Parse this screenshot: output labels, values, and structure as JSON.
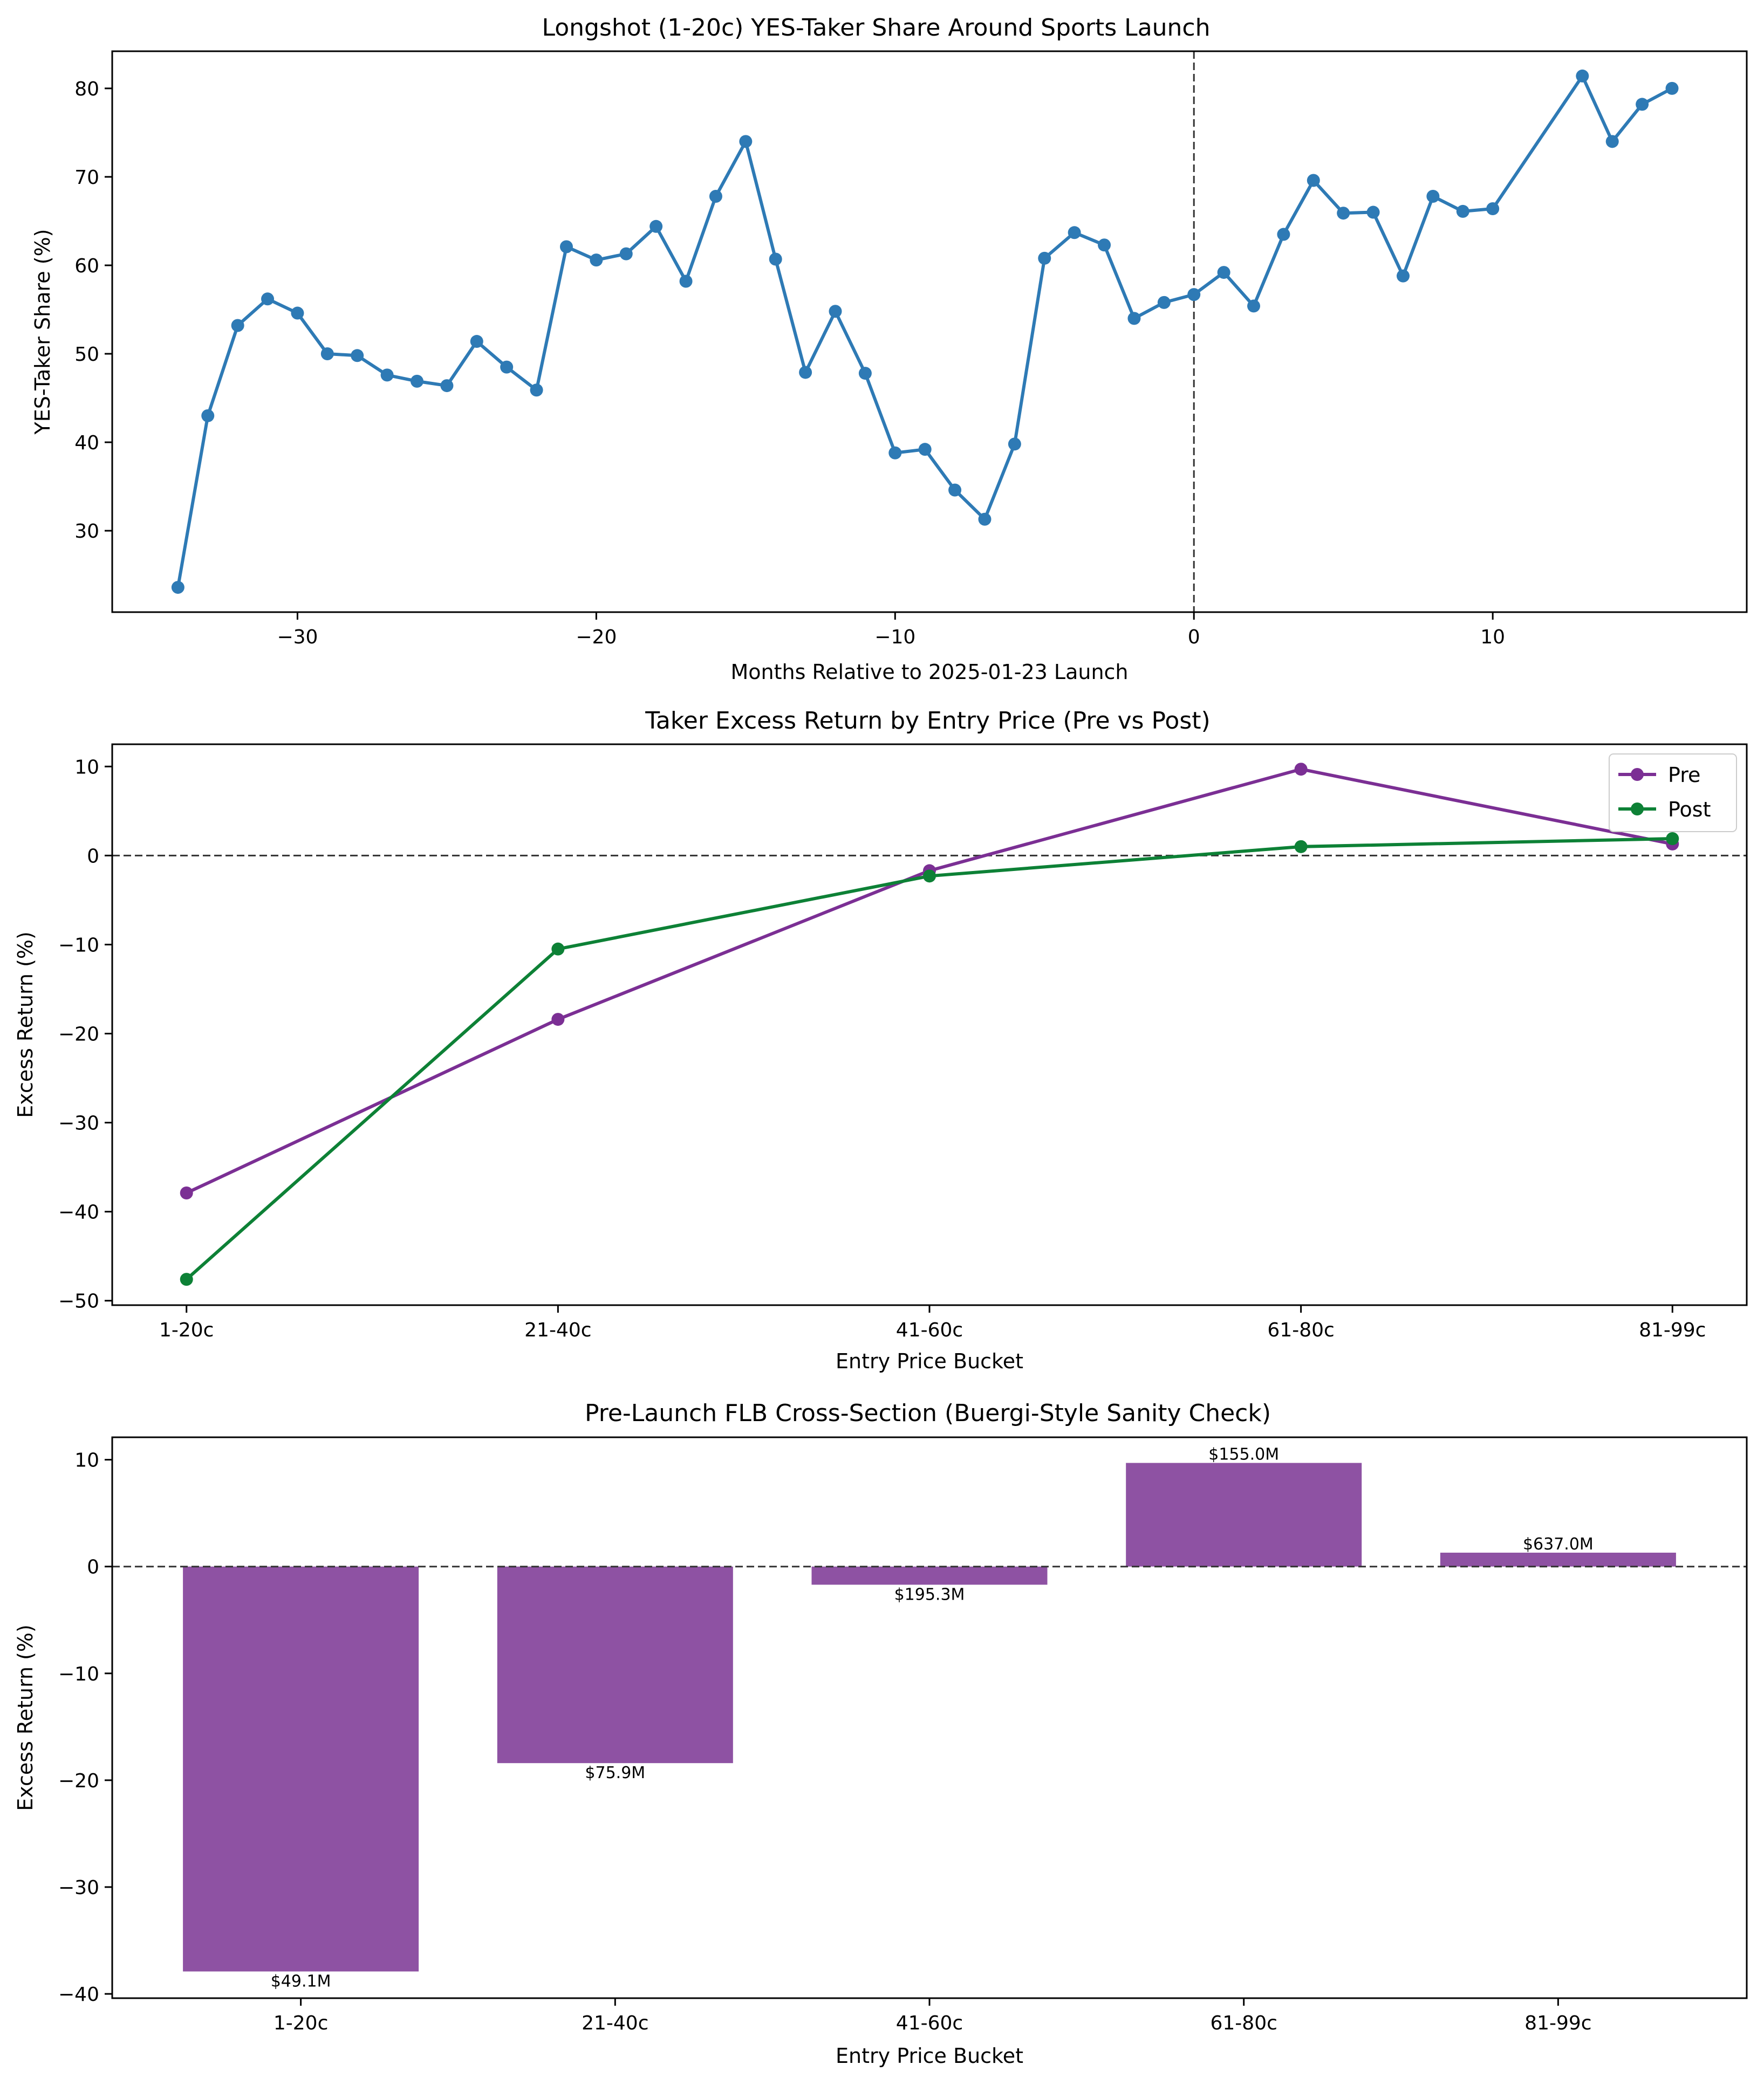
{
  "colors": {
    "blue": "#2e7ab5",
    "purple": "#7b2f94",
    "green": "#0d8136",
    "bar": "#8e52a3",
    "zero": "#333333",
    "axis": "#000000"
  },
  "chart_data": [
    {
      "type": "line",
      "title": "Longshot (1-20c) YES-Taker Share Around Sports Launch",
      "xlabel": "Months Relative to 2025-01-23 Launch",
      "ylabel": "YES-Taker Share (%)",
      "xlim": [
        -36.2,
        18.5
      ],
      "ylim": [
        20.8,
        84.2
      ],
      "xticks": [
        -30,
        -20,
        -10,
        0,
        10
      ],
      "xtick_labels": [
        "−30",
        "−20",
        "−10",
        "0",
        "10"
      ],
      "yticks": [
        30,
        40,
        50,
        60,
        70,
        80
      ],
      "ytick_labels": [
        "30",
        "40",
        "50",
        "60",
        "70",
        "80"
      ],
      "vline": 0,
      "series": [
        {
          "x": [
            -34,
            -33,
            -32,
            -31,
            -30,
            -29,
            -28,
            -27,
            -26,
            -25,
            -24,
            -23,
            -22,
            -21,
            -20,
            -19,
            -18,
            -17,
            -16,
            -15,
            -14,
            -13,
            -12,
            -11,
            -10,
            -9,
            -8,
            -7,
            -6,
            -5,
            -4,
            -3,
            -2,
            -1,
            0,
            1,
            2,
            3,
            4,
            5,
            6,
            7,
            8,
            9,
            10,
            13,
            14,
            15,
            16
          ],
          "values": [
            23.6,
            43.0,
            53.2,
            56.2,
            54.6,
            50.0,
            49.8,
            47.6,
            46.9,
            46.4,
            51.4,
            48.5,
            45.9,
            62.1,
            60.6,
            61.3,
            64.4,
            58.2,
            67.8,
            74.0,
            60.7,
            47.9,
            54.8,
            47.8,
            38.8,
            39.2,
            34.6,
            31.3,
            39.8,
            60.8,
            63.7,
            62.3,
            54.0,
            55.8,
            56.7,
            59.2,
            55.4,
            63.5,
            69.6,
            65.9,
            66.0,
            58.8,
            67.8,
            66.1,
            66.4,
            81.4,
            74.0,
            78.2,
            80.0
          ],
          "color": "#2e7ab5"
        }
      ]
    },
    {
      "type": "line",
      "title": "Taker Excess Return by Entry Price (Pre vs Post)",
      "xlabel": "Entry Price Bucket",
      "ylabel": "Excess Return (%)",
      "categories": [
        "1-20c",
        "21-40c",
        "41-60c",
        "61-80c",
        "81-99c"
      ],
      "xlim": [
        -0.2,
        4.2
      ],
      "ylim": [
        -50.5,
        12.5
      ],
      "yticks": [
        -50,
        -40,
        -30,
        -20,
        -10,
        0,
        10
      ],
      "ytick_labels": [
        "−50",
        "−40",
        "−30",
        "−20",
        "−10",
        "0",
        "10"
      ],
      "hline": 0,
      "legend": "top-right",
      "series": [
        {
          "name": "Pre",
          "values": [
            -37.9,
            -18.4,
            -1.7,
            9.7,
            1.3
          ],
          "color": "#7b2f94"
        },
        {
          "name": "Post",
          "values": [
            -47.6,
            -10.5,
            -2.3,
            1.0,
            1.9
          ],
          "color": "#0d8136"
        }
      ]
    },
    {
      "type": "bar",
      "title": "Pre-Launch FLB Cross-Section (Buergi-Style Sanity Check)",
      "xlabel": "Entry Price Bucket",
      "ylabel": "Excess Return (%)",
      "categories": [
        "1-20c",
        "21-40c",
        "41-60c",
        "61-80c",
        "81-99c"
      ],
      "values": [
        -37.9,
        -18.4,
        -1.7,
        9.7,
        1.3
      ],
      "bar_labels": [
        "$49.1M",
        "$75.9M",
        "$195.3M",
        "$155.0M",
        "$637.0M"
      ],
      "xlim": [
        -0.6,
        4.6
      ],
      "ylim": [
        -40.4,
        12.1
      ],
      "yticks": [
        -40,
        -30,
        -20,
        -10,
        0,
        10
      ],
      "ytick_labels": [
        "−40",
        "−30",
        "−20",
        "−10",
        "0",
        "10"
      ],
      "hline": 0,
      "color": "#8e52a3"
    }
  ]
}
